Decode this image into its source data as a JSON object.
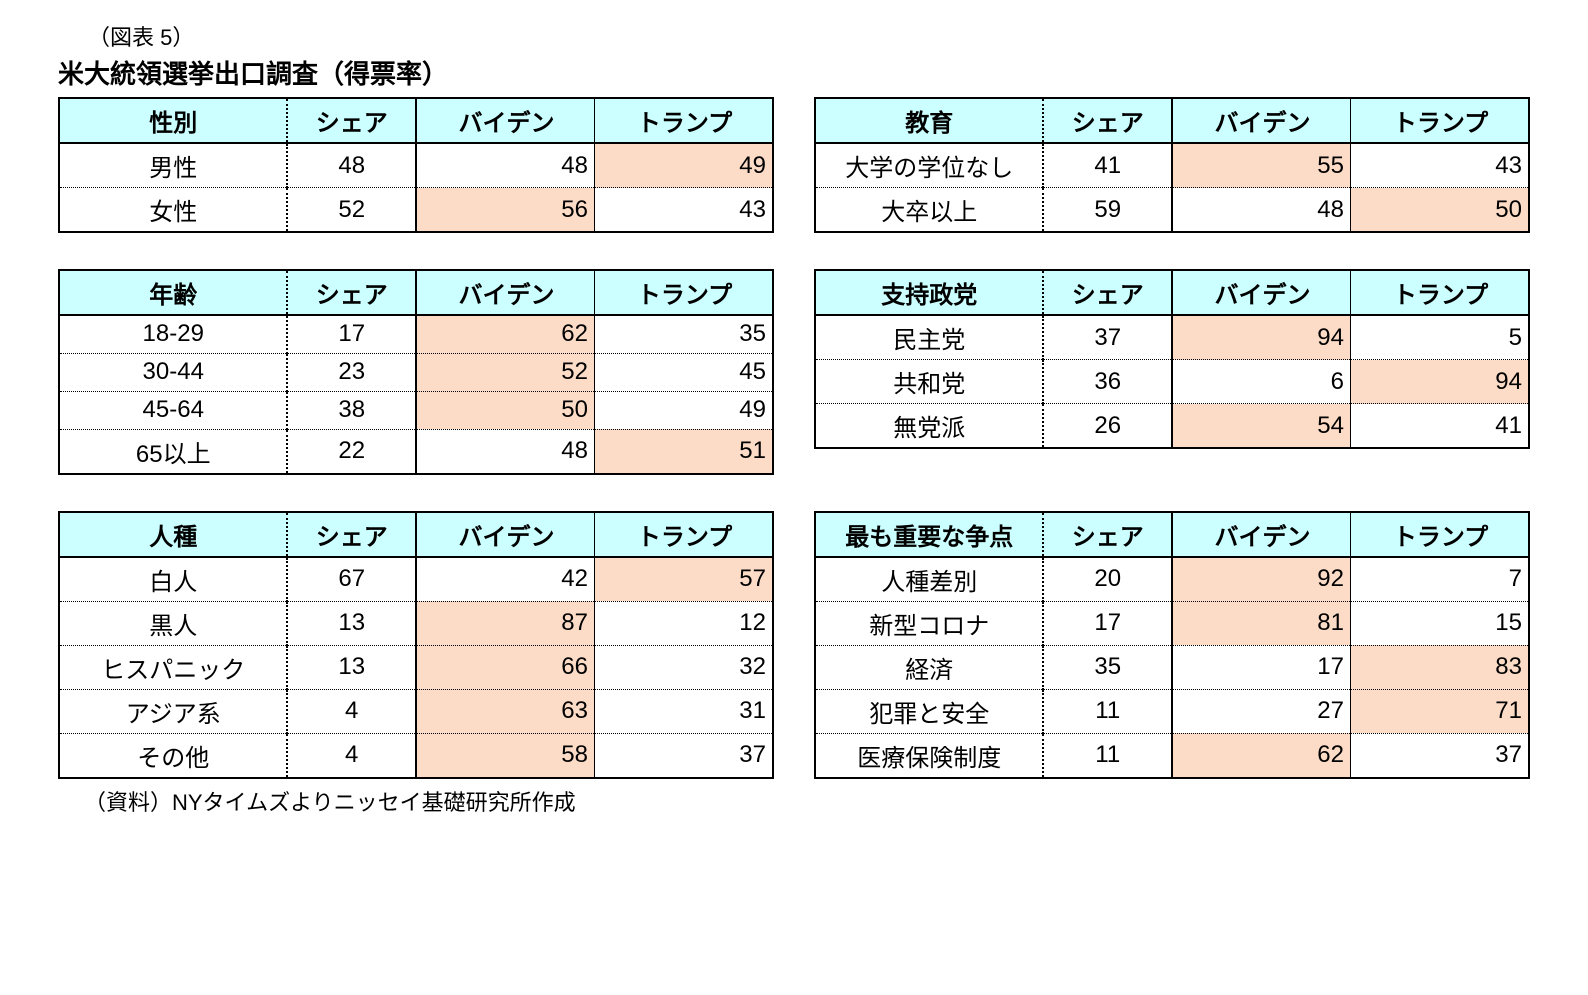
{
  "colors": {
    "header_bg": "#ccffff",
    "highlight_bg": "#fcdcc6",
    "border": "#000000",
    "page_bg": "#ffffff"
  },
  "typography": {
    "caption_fontsize": 22,
    "title_fontsize": 26,
    "cell_fontsize": 24,
    "src_fontsize": 22,
    "font_family": "Hiragino Kaku Gothic ProN / Yu Gothic / Meiryo"
  },
  "layout": {
    "grid": "2 columns × 3 rows of tables",
    "col_widths_pct": {
      "category": 32,
      "share": 18,
      "biden": 25,
      "trump": 25
    },
    "inner_vertical_borders": {
      "cat_share": "dotted 2px",
      "share_biden": "solid 2px",
      "biden_trump": "solid 1px"
    },
    "row_separator": "dotted 1px",
    "outer_border": "solid 2px"
  },
  "caption": "（図表 5）",
  "title": "米大統領選挙出口調査（得票率）",
  "source": "（資料）NYタイムズよりニッセイ基礎研究所作成",
  "col_labels": {
    "share": "シェア",
    "biden": "バイデン",
    "trump": "トランプ"
  },
  "tables": [
    {
      "id": "gender",
      "heading": "性別",
      "rows": [
        {
          "cat": "男性",
          "share": 48,
          "biden": 48,
          "trump": 49,
          "hl": "trump"
        },
        {
          "cat": "女性",
          "share": 52,
          "biden": 56,
          "trump": 43,
          "hl": "biden"
        }
      ]
    },
    {
      "id": "education",
      "heading": "教育",
      "rows": [
        {
          "cat": "大学の学位なし",
          "share": 41,
          "biden": 55,
          "trump": 43,
          "hl": "biden"
        },
        {
          "cat": "大卒以上",
          "share": 59,
          "biden": 48,
          "trump": 50,
          "hl": "trump"
        }
      ]
    },
    {
      "id": "age",
      "heading": "年齢",
      "rows": [
        {
          "cat": "18-29",
          "share": 17,
          "biden": 62,
          "trump": 35,
          "hl": "biden"
        },
        {
          "cat": "30-44",
          "share": 23,
          "biden": 52,
          "trump": 45,
          "hl": "biden"
        },
        {
          "cat": "45-64",
          "share": 38,
          "biden": 50,
          "trump": 49,
          "hl": "biden"
        },
        {
          "cat": "65以上",
          "share": 22,
          "biden": 48,
          "trump": 51,
          "hl": "trump"
        }
      ]
    },
    {
      "id": "party",
      "heading": "支持政党",
      "rows": [
        {
          "cat": "民主党",
          "share": 37,
          "biden": 94,
          "trump": 5,
          "hl": "biden"
        },
        {
          "cat": "共和党",
          "share": 36,
          "biden": 6,
          "trump": 94,
          "hl": "trump"
        },
        {
          "cat": "無党派",
          "share": 26,
          "biden": 54,
          "trump": 41,
          "hl": "biden"
        }
      ]
    },
    {
      "id": "race",
      "heading": "人種",
      "rows": [
        {
          "cat": "白人",
          "share": 67,
          "biden": 42,
          "trump": 57,
          "hl": "trump"
        },
        {
          "cat": "黒人",
          "share": 13,
          "biden": 87,
          "trump": 12,
          "hl": "biden"
        },
        {
          "cat": "ヒスパニック",
          "share": 13,
          "biden": 66,
          "trump": 32,
          "hl": "biden"
        },
        {
          "cat": "アジア系",
          "share": 4,
          "biden": 63,
          "trump": 31,
          "hl": "biden"
        },
        {
          "cat": "その他",
          "share": 4,
          "biden": 58,
          "trump": 37,
          "hl": "biden"
        }
      ]
    },
    {
      "id": "issue",
      "heading": "最も重要な争点",
      "rows": [
        {
          "cat": "人種差別",
          "share": 20,
          "biden": 92,
          "trump": 7,
          "hl": "biden"
        },
        {
          "cat": "新型コロナ",
          "share": 17,
          "biden": 81,
          "trump": 15,
          "hl": "biden"
        },
        {
          "cat": "経済",
          "share": 35,
          "biden": 17,
          "trump": 83,
          "hl": "trump"
        },
        {
          "cat": "犯罪と安全",
          "share": 11,
          "biden": 27,
          "trump": 71,
          "hl": "trump"
        },
        {
          "cat": "医療保険制度",
          "share": 11,
          "biden": 62,
          "trump": 37,
          "hl": "biden"
        }
      ]
    }
  ]
}
